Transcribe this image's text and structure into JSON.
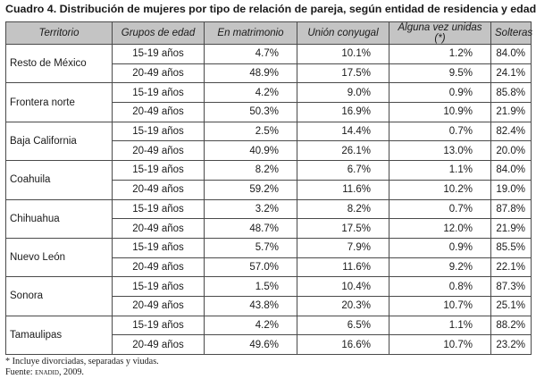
{
  "title": "Cuadro 4. Distribución de mujeres por tipo de relación de pareja, según entidad de residencia y edad",
  "headers": {
    "territorio": "Territorio",
    "grupos": "Grupos de edad",
    "matrimonio": "En matrimonio",
    "union": "Unión conyugal",
    "alguna": "Alguna vez unidas (*)",
    "solteras": "Solteras"
  },
  "rows": [
    {
      "territorio": "Resto de México",
      "g1": {
        "edad": "15-19 años",
        "matrimonio": "4.7%",
        "union": "10.1%",
        "alguna": "1.2%",
        "solteras": "84.0%"
      },
      "g2": {
        "edad": "20-49 años",
        "matrimonio": "48.9%",
        "union": "17.5%",
        "alguna": "9.5%",
        "solteras": "24.1%"
      }
    },
    {
      "territorio": "Frontera norte",
      "g1": {
        "edad": "15-19 años",
        "matrimonio": "4.2%",
        "union": "9.0%",
        "alguna": "0.9%",
        "solteras": "85.8%"
      },
      "g2": {
        "edad": "20-49 años",
        "matrimonio": "50.3%",
        "union": "16.9%",
        "alguna": "10.9%",
        "solteras": "21.9%"
      }
    },
    {
      "territorio": "Baja California",
      "g1": {
        "edad": "15-19 años",
        "matrimonio": "2.5%",
        "union": "14.4%",
        "alguna": "0.7%",
        "solteras": "82.4%"
      },
      "g2": {
        "edad": "20-49 años",
        "matrimonio": "40.9%",
        "union": "26.1%",
        "alguna": "13.0%",
        "solteras": "20.0%"
      }
    },
    {
      "territorio": "Coahuila",
      "g1": {
        "edad": "15-19 años",
        "matrimonio": "8.2%",
        "union": "6.7%",
        "alguna": "1.1%",
        "solteras": "84.0%"
      },
      "g2": {
        "edad": "20-49 años",
        "matrimonio": "59.2%",
        "union": "11.6%",
        "alguna": "10.2%",
        "solteras": "19.0%"
      }
    },
    {
      "territorio": "Chihuahua",
      "g1": {
        "edad": "15-19 años",
        "matrimonio": "3.2%",
        "union": "8.2%",
        "alguna": "0.7%",
        "solteras": "87.8%"
      },
      "g2": {
        "edad": "20-49 años",
        "matrimonio": "48.7%",
        "union": "17.5%",
        "alguna": "12.0%",
        "solteras": "21.9%"
      }
    },
    {
      "territorio": "Nuevo León",
      "g1": {
        "edad": "15-19 años",
        "matrimonio": "5.7%",
        "union": "7.9%",
        "alguna": "0.9%",
        "solteras": "85.5%"
      },
      "g2": {
        "edad": "20-49 años",
        "matrimonio": "57.0%",
        "union": "11.6%",
        "alguna": "9.2%",
        "solteras": "22.1%"
      }
    },
    {
      "territorio": "Sonora",
      "g1": {
        "edad": "15-19 años",
        "matrimonio": "1.5%",
        "union": "10.4%",
        "alguna": "0.8%",
        "solteras": "87.3%"
      },
      "g2": {
        "edad": "20-49 años",
        "matrimonio": "43.8%",
        "union": "20.3%",
        "alguna": "10.7%",
        "solteras": "25.1%"
      }
    },
    {
      "territorio": "Tamaulipas",
      "g1": {
        "edad": "15-19 años",
        "matrimonio": "4.2%",
        "union": "6.5%",
        "alguna": "1.1%",
        "solteras": "88.2%"
      },
      "g2": {
        "edad": "20-49 años",
        "matrimonio": "49.6%",
        "union": "16.6%",
        "alguna": "10.7%",
        "solteras": "23.2%"
      }
    }
  ],
  "notes": {
    "footnote": "* Incluye divorciadas, separadas y viudas.",
    "source_prefix": "Fuente: ",
    "source_name": "enadid",
    "source_suffix": ", 2009."
  },
  "colors": {
    "header_bg": "#c4c4c4",
    "border": "#4a4a4a",
    "text": "#1a1a1a"
  }
}
